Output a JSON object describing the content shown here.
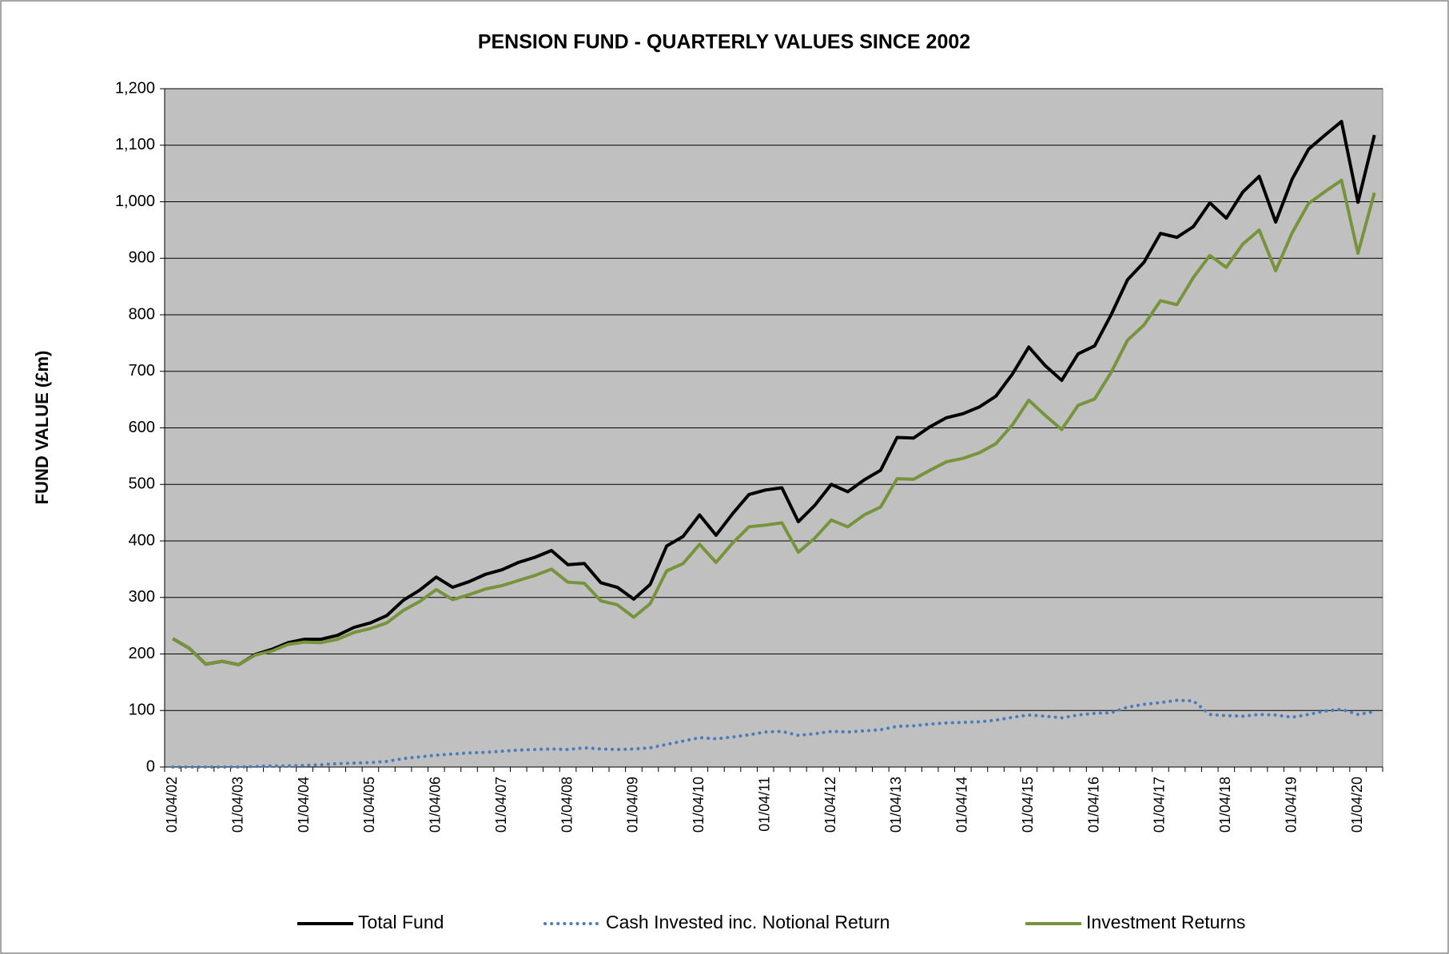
{
  "chart_data": {
    "type": "line",
    "title": "PENSION FUND - QUARTERLY VALUES SINCE 2002",
    "y_label": "FUND VALUE (£m)",
    "categories": [
      "01/04/02",
      null,
      null,
      null,
      "01/04/03",
      null,
      null,
      null,
      "01/04/04",
      null,
      null,
      null,
      "01/04/05",
      null,
      null,
      null,
      "01/04/06",
      null,
      null,
      null,
      "01/04/07",
      null,
      null,
      null,
      "01/04/08",
      null,
      null,
      null,
      "01/04/09",
      null,
      null,
      null,
      "01/04/10",
      null,
      null,
      null,
      "01/04/11",
      null,
      null,
      null,
      "01/04/12",
      null,
      null,
      null,
      "01/04/13",
      null,
      null,
      null,
      "01/04/14",
      null,
      null,
      null,
      "01/04/15",
      null,
      null,
      null,
      "01/04/16",
      null,
      null,
      null,
      "01/04/17",
      null,
      null,
      null,
      "01/04/18",
      null,
      null,
      null,
      "01/04/19",
      null,
      null,
      null,
      "01/04/20",
      null
    ],
    "series": [
      {
        "name": "Total Fund",
        "color": "#000000",
        "dash": "solid",
        "values": [
          227,
          210,
          182,
          187,
          181,
          199,
          208,
          220,
          226,
          226,
          233,
          247,
          255,
          268,
          295,
          313,
          336,
          318,
          328,
          341,
          349,
          362,
          371,
          383,
          358,
          360,
          326,
          318,
          297,
          323,
          391,
          408,
          446,
          410,
          448,
          482,
          490,
          494,
          434,
          463,
          500,
          487,
          508,
          525,
          583,
          582,
          602,
          618,
          625,
          637,
          656,
          695,
          743,
          710,
          684,
          731,
          745,
          800,
          862,
          893,
          944,
          937,
          956,
          998,
          971,
          1017,
          1045,
          964,
          1040,
          1093,
          1118,
          1142,
          999,
          1118
        ]
      },
      {
        "name": "Cash Invested inc. Notional Return",
        "color": "#4a7ebb",
        "dash": "dotted",
        "values": [
          0,
          0,
          0,
          0,
          0,
          1,
          2,
          2,
          3,
          4,
          6,
          7,
          8,
          10,
          15,
          18,
          21,
          23,
          25,
          26,
          28,
          30,
          31,
          32,
          31,
          34,
          32,
          31,
          32,
          34,
          40,
          46,
          52,
          50,
          53,
          57,
          62,
          63,
          56,
          59,
          63,
          62,
          64,
          66,
          72,
          73,
          76,
          78,
          79,
          80,
          83,
          88,
          92,
          90,
          87,
          92,
          95,
          96,
          106,
          111,
          114,
          118,
          117,
          93,
          91,
          90,
          93,
          92,
          88,
          93,
          99,
          102,
          93,
          98
        ]
      },
      {
        "name": "Investment Returns",
        "color": "#77933c",
        "dash": "solid",
        "values": [
          227,
          210,
          182,
          187,
          181,
          198,
          205,
          217,
          221,
          220,
          226,
          238,
          245,
          255,
          277,
          293,
          314,
          296,
          305,
          315,
          321,
          330,
          339,
          350,
          327,
          325,
          294,
          287,
          265,
          289,
          347,
          360,
          394,
          362,
          396,
          425,
          428,
          432,
          380,
          405,
          437,
          425,
          446,
          460,
          510,
          509,
          525,
          540,
          546,
          556,
          572,
          605,
          649,
          622,
          597,
          640,
          651,
          698,
          755,
          782,
          825,
          818,
          866,
          905,
          884,
          925,
          950,
          878,
          945,
          997,
          1018,
          1038,
          909,
          1016
        ]
      }
    ],
    "ylim": [
      0,
      1200
    ],
    "yticks": [
      0,
      100,
      200,
      300,
      400,
      500,
      600,
      700,
      800,
      900,
      {
        "value": 1000,
        "label": "1,000"
      },
      {
        "value": 1100,
        "label": "1,100"
      },
      {
        "value": 1200,
        "label": "1,200"
      }
    ],
    "grid": true,
    "plot_background": "#c0c0c0",
    "legend": "bottom"
  }
}
